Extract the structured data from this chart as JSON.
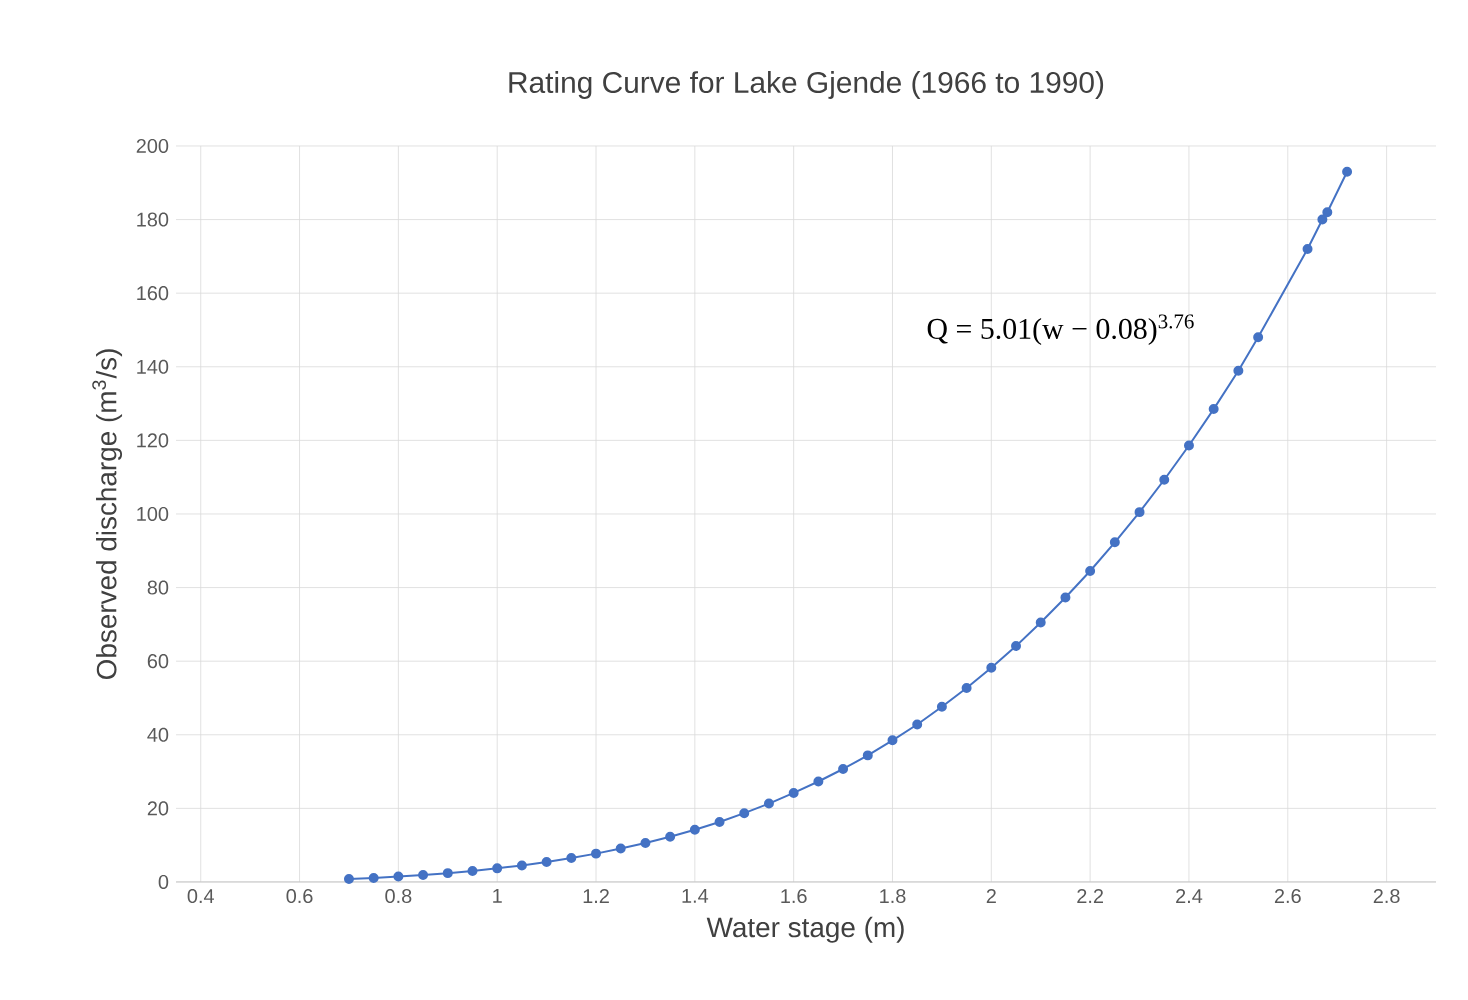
{
  "chart_data": {
    "type": "line",
    "title": "Rating Curve for Lake Gjende (1966 to 1990)",
    "xlabel": "Water stage (m)",
    "ylabel": "Observed discharge (m$^{3}$/s)",
    "annotations": [
      "Q = 5.01(w − 0.08)$^{3.76}$"
    ],
    "series": [
      {
        "color": "#4472c4",
        "x": [
          0.7,
          0.75,
          0.8,
          0.85,
          0.9,
          0.95,
          1.0,
          1.05,
          1.1,
          1.15,
          1.2,
          1.25,
          1.3,
          1.35,
          1.4,
          1.45,
          1.5,
          1.55,
          1.6,
          1.65,
          1.7,
          1.75,
          1.8,
          1.85,
          1.9,
          1.95,
          2.0,
          2.05,
          2.1,
          2.15,
          2.2,
          2.25,
          2.3,
          2.35,
          2.4,
          2.45,
          2.5,
          2.54,
          2.64,
          2.67,
          2.68,
          2.72
        ],
        "values": [
          0.8,
          1.1,
          1.5,
          1.9,
          2.4,
          3.0,
          3.7,
          4.5,
          5.4,
          6.5,
          7.7,
          9.1,
          10.6,
          12.3,
          14.2,
          16.3,
          18.7,
          21.3,
          24.2,
          27.3,
          30.7,
          34.4,
          38.5,
          42.8,
          47.6,
          52.7,
          58.2,
          64.1,
          70.5,
          77.3,
          84.5,
          92.3,
          100.5,
          109.3,
          118.6,
          128.5,
          138.9,
          148,
          172,
          180,
          182,
          193
        ]
      }
    ],
    "xlim": [
      0.35,
      2.9
    ],
    "ylim": [
      0,
      200
    ],
    "xticks": [
      0.4,
      0.6,
      0.8,
      1,
      1.2,
      1.4,
      1.6,
      1.8,
      2,
      2.2,
      2.4,
      2.6,
      2.8
    ],
    "yticks": [
      0,
      20,
      40,
      60,
      80,
      100,
      120,
      140,
      160,
      180,
      200
    ],
    "grid": true,
    "marker": "circle",
    "line_style": "solid"
  }
}
